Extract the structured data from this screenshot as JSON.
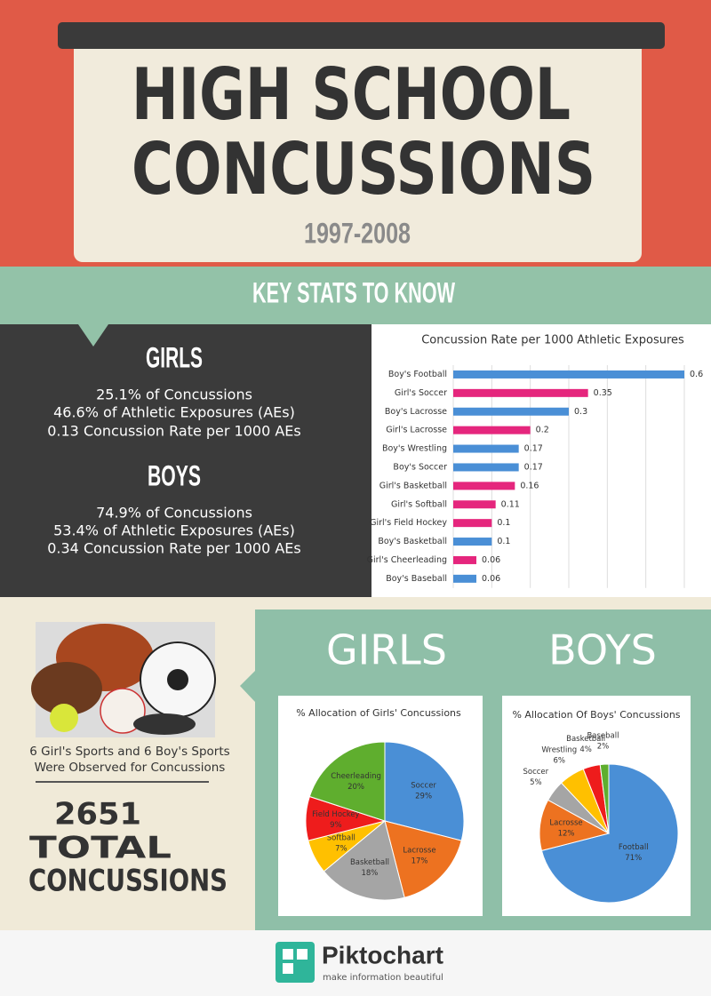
{
  "header": {
    "title_lines": [
      "HIGH SCHOOL",
      "CONCUSSIONS"
    ],
    "subtitle": "1997-2008"
  },
  "banner": "KEY STATS TO KNOW",
  "stats": [
    {
      "heading": "GIRLS",
      "lines": [
        "25.1% of Concussions",
        "46.6% of Athletic Exposures (AEs)",
        "0.13 Concussion Rate per 1000 AEs"
      ]
    },
    {
      "heading": "BOYS",
      "lines": [
        "74.9% of Concussions",
        "53.4% of Athletic Exposures (AEs)",
        "0.34 Concussion Rate per 1000 AEs"
      ]
    }
  ],
  "observed": [
    "6 Girl's Sports and 6 Boy's Sports",
    "Were Observed for Concussions"
  ],
  "total": [
    "2651",
    "TOTAL",
    "CONCUSSIONS"
  ],
  "pie_headings": [
    "GIRLS",
    "BOYS"
  ],
  "footer": {
    "brand": "Piktochart",
    "tagline": "make information beautiful"
  },
  "chart_data": [
    {
      "type": "hbar",
      "title": "Concussion Rate per 1000 Athletic Exposures",
      "categories": [
        "Boy's Football",
        "Girl's Soccer",
        "Boy's Lacrosse",
        "Girl's Lacrosse",
        "Boy's Wrestling",
        "Boy's Soccer",
        "Girl's Basketball",
        "Girl's Softball",
        "Girl's Field Hockey",
        "Boy's Basketball",
        "Girl's Cheerleading",
        "Boy's Baseball"
      ],
      "values": [
        0.6,
        0.35,
        0.3,
        0.2,
        0.17,
        0.17,
        0.16,
        0.11,
        0.1,
        0.1,
        0.06,
        0.06
      ],
      "colors": [
        "#4a8fd6",
        "#e5267d",
        "#4a8fd6",
        "#e5267d",
        "#4a8fd6",
        "#4a8fd6",
        "#e5267d",
        "#e5267d",
        "#e5267d",
        "#4a8fd6",
        "#e5267d",
        "#4a8fd6"
      ],
      "xlim": [
        0,
        0.6
      ],
      "xticks": [
        0,
        0.1,
        0.2,
        0.3,
        0.4,
        0.5,
        0.6
      ],
      "grid": true
    },
    {
      "type": "pie",
      "title": "% Allocation of Girls' Concussions",
      "categories": [
        "Soccer",
        "Lacrosse",
        "Basketball",
        "Softball",
        "Field Hockey",
        "Cheerleading"
      ],
      "values": [
        29,
        17,
        18,
        7,
        9,
        20
      ],
      "value_labels": [
        "29%",
        "17%",
        "18%",
        "7%",
        "9%",
        "20%"
      ],
      "colors": [
        "#4a8fd6",
        "#ed7220",
        "#a5a5a5",
        "#ffc000",
        "#ee1c1c",
        "#5fae2e"
      ]
    },
    {
      "type": "pie",
      "title": "% Allocation Of Boys' Concussions",
      "categories": [
        "Football",
        "Lacrosse",
        "Soccer",
        "Wrestling",
        "Basketball",
        "Baseball"
      ],
      "values": [
        71,
        12,
        5,
        6,
        4,
        2
      ],
      "value_labels": [
        "71%",
        "12%",
        "5%",
        "6%",
        "4%",
        "2%"
      ],
      "colors": [
        "#4a8fd6",
        "#ed7220",
        "#a5a5a5",
        "#ffc000",
        "#ee1c1c",
        "#5fae2e"
      ]
    }
  ]
}
